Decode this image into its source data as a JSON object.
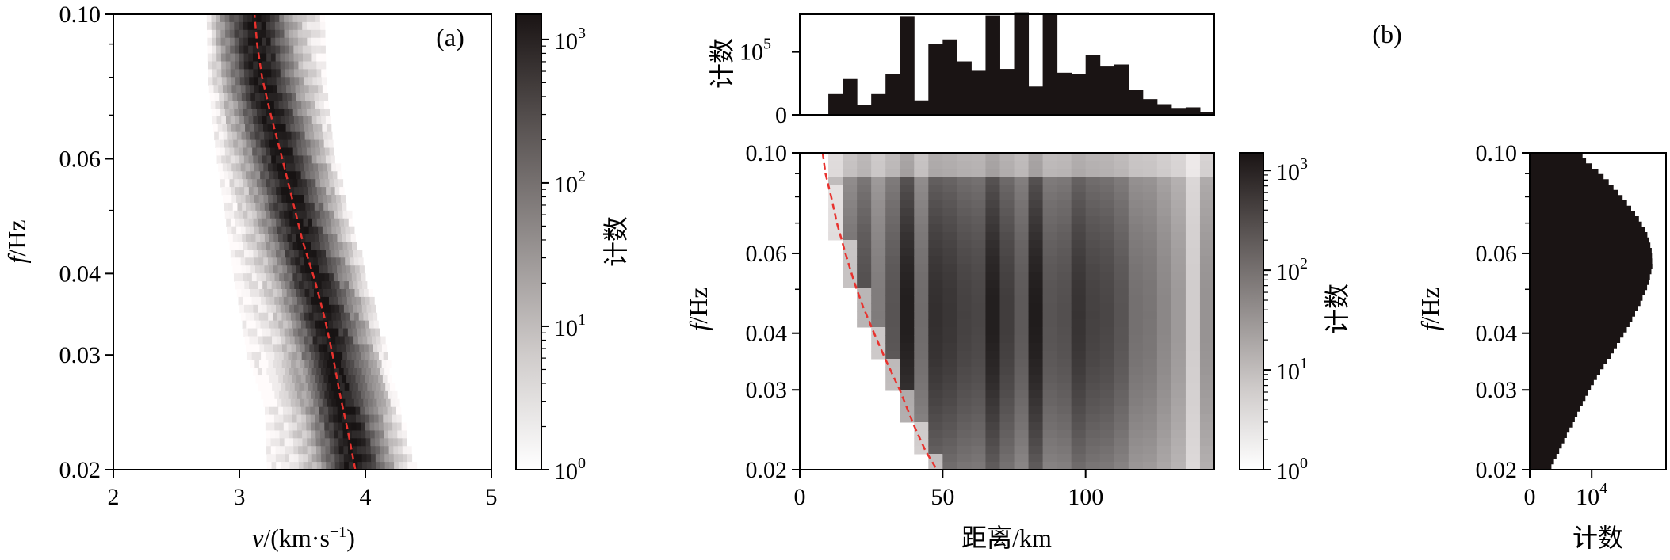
{
  "chart_data": [
    {
      "id": "a",
      "type": "heatmap",
      "panel_label": "(a)",
      "xlabel_italic": "v",
      "xlabel_rest": "/(km·s",
      "xlabel_sup": "−1",
      "xlabel_close": ")",
      "ylabel_italic": "f",
      "ylabel_rest": "/Hz",
      "xlim": [
        2,
        5
      ],
      "ylim": [
        0.02,
        0.1
      ],
      "y_scale": "log",
      "xticks": [
        "2",
        "3",
        "4",
        "5"
      ],
      "yticks": [
        "0.02",
        "0.03",
        "0.04",
        "0.06",
        "0.10"
      ],
      "colorbar": {
        "label": "计数",
        "scale": "log",
        "range": [
          1,
          1500
        ],
        "ticks": [
          "10",
          "10",
          "10",
          "10"
        ],
        "tick_exponents": [
          "0",
          "1",
          "2",
          "3"
        ]
      },
      "ridge_curve": {
        "color": "#e8322e",
        "style": "dashed",
        "points": [
          [
            3.92,
            0.02
          ],
          [
            3.86,
            0.023
          ],
          [
            3.8,
            0.026
          ],
          [
            3.74,
            0.03
          ],
          [
            3.68,
            0.034
          ],
          [
            3.6,
            0.039
          ],
          [
            3.5,
            0.045
          ],
          [
            3.42,
            0.052
          ],
          [
            3.34,
            0.06
          ],
          [
            3.25,
            0.07
          ],
          [
            3.18,
            0.08
          ],
          [
            3.14,
            0.09
          ],
          [
            3.12,
            0.1
          ]
        ]
      },
      "density_band": {
        "lower_edge": [
          [
            3.22,
            0.02
          ],
          [
            3.2,
            0.025
          ],
          [
            3.06,
            0.03
          ],
          [
            2.95,
            0.04
          ],
          [
            2.88,
            0.05
          ],
          [
            2.82,
            0.06
          ],
          [
            2.78,
            0.07
          ],
          [
            2.75,
            0.08
          ],
          [
            2.74,
            0.1
          ]
        ],
        "upper_edge": [
          [
            4.38,
            0.02
          ],
          [
            4.25,
            0.025
          ],
          [
            4.15,
            0.03
          ],
          [
            3.98,
            0.04
          ],
          [
            3.85,
            0.05
          ],
          [
            3.75,
            0.06
          ],
          [
            3.7,
            0.07
          ],
          [
            3.68,
            0.08
          ],
          [
            3.66,
            0.1
          ]
        ]
      }
    },
    {
      "id": "b",
      "type": "heatmap",
      "panel_label": "(b)",
      "xlabel": "距离/km",
      "ylabel_italic": "f",
      "ylabel_rest": "/Hz",
      "xlim": [
        0,
        145
      ],
      "ylim": [
        0.02,
        0.1
      ],
      "y_scale": "log",
      "xticks": [
        "0",
        "50",
        "100"
      ],
      "yticks": [
        "0.02",
        "0.03",
        "0.04",
        "0.06",
        "0.10"
      ],
      "colorbar": {
        "label": "计数",
        "scale": "log",
        "range": [
          1,
          1500
        ],
        "ticks": [
          "10",
          "10",
          "10",
          "10"
        ],
        "tick_exponents": [
          "0",
          "1",
          "2",
          "3"
        ]
      },
      "cutoff_curve": {
        "color": "#e8322e",
        "style": "dashed",
        "points": [
          [
            8,
            0.1
          ],
          [
            9,
            0.09
          ],
          [
            11,
            0.08
          ],
          [
            13,
            0.07
          ],
          [
            16,
            0.06
          ],
          [
            19,
            0.052
          ],
          [
            22,
            0.046
          ],
          [
            26,
            0.04
          ],
          [
            30,
            0.035
          ],
          [
            35,
            0.03
          ],
          [
            40,
            0.025
          ],
          [
            44,
            0.022
          ],
          [
            48,
            0.02
          ]
        ]
      },
      "column_intensity": {
        "bin_width_km": 5,
        "bin_centers_km": [
          12.5,
          17.5,
          22.5,
          27.5,
          32.5,
          37.5,
          42.5,
          47.5,
          52.5,
          57.5,
          62.5,
          67.5,
          72.5,
          77.5,
          82.5,
          87.5,
          92.5,
          97.5,
          102.5,
          107.5,
          112.5,
          117.5,
          122.5,
          127.5,
          132.5,
          137.5,
          142.5
        ],
        "relative": [
          0.35,
          0.62,
          0.75,
          0.55,
          0.72,
          0.95,
          0.62,
          0.88,
          0.85,
          0.8,
          0.78,
          0.95,
          0.82,
          0.7,
          0.96,
          0.72,
          0.74,
          0.86,
          0.8,
          0.78,
          0.72,
          0.6,
          0.58,
          0.5,
          0.42,
          0.2,
          0.45
        ]
      }
    },
    {
      "id": "b-top",
      "type": "bar",
      "ylabel": "计数",
      "ylim": [
        0,
        160000
      ],
      "yticks": [
        "0",
        "10"
      ],
      "ytick_exponent": "5",
      "ytick_values": [
        0,
        100000
      ],
      "x_centers_km": [
        2.5,
        7.5,
        12.5,
        17.5,
        22.5,
        27.5,
        32.5,
        37.5,
        42.5,
        47.5,
        52.5,
        57.5,
        62.5,
        67.5,
        72.5,
        77.5,
        82.5,
        87.5,
        92.5,
        97.5,
        102.5,
        107.5,
        112.5,
        117.5,
        122.5,
        127.5,
        132.5,
        137.5,
        142.5
      ],
      "values": [
        0,
        0,
        33000,
        57000,
        16000,
        33000,
        65000,
        157000,
        23000,
        113000,
        120000,
        85000,
        70000,
        158000,
        73000,
        163000,
        45000,
        160000,
        67000,
        65000,
        95000,
        78000,
        80000,
        40000,
        25000,
        17000,
        11000,
        12000,
        5000
      ]
    },
    {
      "id": "b-right",
      "type": "bar",
      "orientation": "horizontal",
      "xlabel": "计数",
      "ylabel_italic": "f",
      "ylabel_rest": "/Hz",
      "xlim": [
        0,
        22000
      ],
      "xticks": [
        "0",
        "10"
      ],
      "xtick_exponent": "4",
      "xtick_values": [
        0,
        10000
      ],
      "ylim": [
        0.02,
        0.1
      ],
      "y_scale": "log",
      "yticks": [
        "0.02",
        "0.03",
        "0.04",
        "0.06",
        "0.10"
      ],
      "profile": [
        [
          0.02,
          3500
        ],
        [
          0.022,
          5000
        ],
        [
          0.025,
          7000
        ],
        [
          0.028,
          8800
        ],
        [
          0.031,
          10500
        ],
        [
          0.035,
          13000
        ],
        [
          0.04,
          15600
        ],
        [
          0.045,
          17600
        ],
        [
          0.05,
          19000
        ],
        [
          0.055,
          19800
        ],
        [
          0.06,
          19700
        ],
        [
          0.065,
          19000
        ],
        [
          0.07,
          17800
        ],
        [
          0.075,
          16200
        ],
        [
          0.08,
          14500
        ],
        [
          0.085,
          12800
        ],
        [
          0.09,
          11000
        ],
        [
          0.095,
          9000
        ],
        [
          0.1,
          8000
        ]
      ]
    }
  ]
}
